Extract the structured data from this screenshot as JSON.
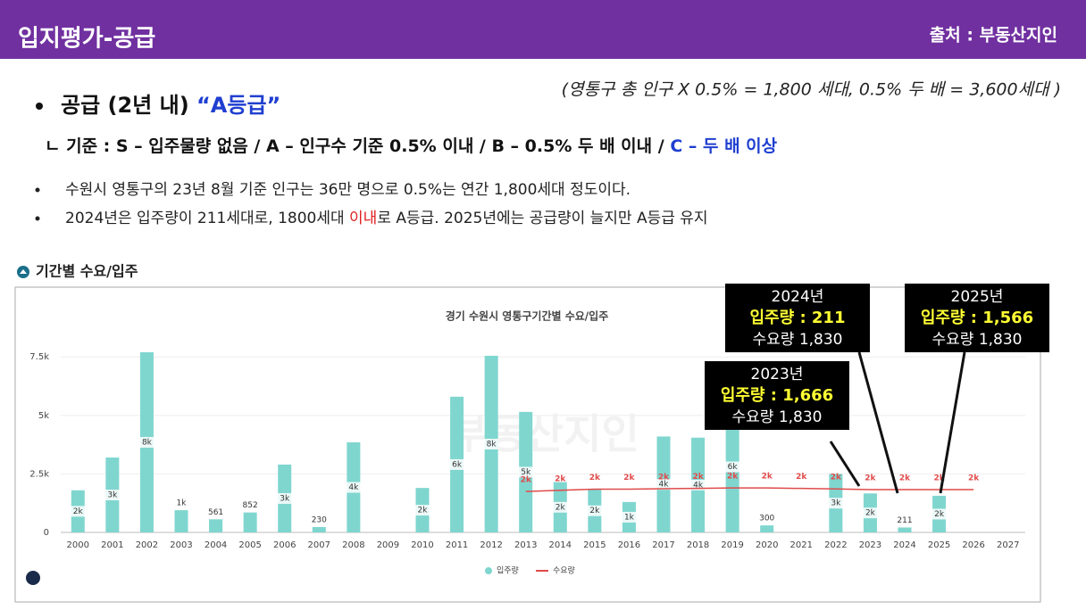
{
  "header": {
    "title": "입지평가-공급",
    "source": "출처 : 부동산지인"
  },
  "formula": "(영통구 총 인구 X 0.5% = 1,800 세대, 0.5% 두 배 = 3,600세대 )",
  "heading": {
    "text": "공급 (2년 내) ",
    "grade": "“A등급”"
  },
  "criteria": {
    "text": "ㄴ 기준 : S – 입주물량 없음 / A – 인구수 기준 0.5% 이내 / B – 0.5% 두 배 이내 / ",
    "highlight": "C – 두 배 이상"
  },
  "bullets": [
    {
      "text": "수원시 영통구의 23년 8월 기준 인구는 36만 명으로 0.5%는 연간 1,800세대 정도이다."
    },
    {
      "before": "2024년은 입주량이 211세대로, 1800세대 ",
      "highlight": "이내",
      "after": "로  A등급. 2025년에는 공급량이 늘지만 A등급 유지"
    }
  ],
  "section_title": "기간별 수요/입주",
  "callouts": [
    {
      "title": "2024년",
      "supply": "입주량 : 211",
      "demand": "수요량 1,830"
    },
    {
      "title": "2025년",
      "supply": "입주량 : 1,566",
      "demand": "수요량 1,830"
    },
    {
      "title": "2023년",
      "supply": "입주량 : 1,666",
      "demand": "수요량 1,830"
    }
  ],
  "chart_data": {
    "type": "bar",
    "title": "경기 수원시 영통구기간별 수요/입주",
    "watermark": "부동산지인",
    "categories": [
      "2000",
      "2001",
      "2002",
      "2003",
      "2004",
      "2005",
      "2006",
      "2007",
      "2008",
      "2009",
      "2010",
      "2011",
      "2012",
      "2013",
      "2014",
      "2015",
      "2016",
      "2017",
      "2018",
      "2019",
      "2020",
      "2021",
      "2022",
      "2023",
      "2024",
      "2025",
      "2026",
      "2027"
    ],
    "series": [
      {
        "name": "입주량",
        "color": "#7fd6cf",
        "values": [
          1800,
          3200,
          7700,
          950,
          561,
          852,
          2900,
          230,
          3850,
          null,
          1900,
          5800,
          7550,
          5150,
          2150,
          1850,
          1300,
          4100,
          4050,
          5600,
          300,
          null,
          2500,
          1666,
          211,
          1566,
          null,
          null
        ],
        "value_labels": [
          "2k",
          "3k",
          "8k",
          "1k",
          "561",
          "852",
          "3k",
          "230",
          "4k",
          null,
          "2k",
          "6k",
          "8k",
          "5k",
          "2k",
          "2k",
          "1k",
          "4k",
          "4k",
          "6k",
          "300",
          null,
          "3k",
          "2k",
          "211",
          "2k",
          null,
          null
        ]
      },
      {
        "name": "수요량",
        "color": "#e04a4a",
        "values": [
          null,
          null,
          null,
          null,
          null,
          null,
          null,
          null,
          null,
          null,
          null,
          null,
          null,
          1750,
          1800,
          1850,
          1850,
          1870,
          1880,
          1900,
          1900,
          1880,
          1860,
          1830,
          1830,
          1830,
          1830,
          null
        ],
        "value_labels": [
          null,
          null,
          null,
          null,
          null,
          null,
          null,
          null,
          null,
          null,
          null,
          null,
          null,
          "2k",
          "2k",
          "2k",
          "2k",
          "2k",
          "2k",
          "2k",
          "2k",
          "2k",
          "2k",
          "2k",
          "2k",
          "2k",
          "2k",
          null
        ]
      }
    ],
    "ylim": [
      0,
      8500
    ],
    "yticks": [
      0,
      {
        "value": 2500,
        "label": "2.5k"
      },
      {
        "value": 5000,
        "label": "5k"
      },
      {
        "value": 7500,
        "label": "7.5k"
      }
    ],
    "grid": true,
    "legend": "bottom"
  }
}
